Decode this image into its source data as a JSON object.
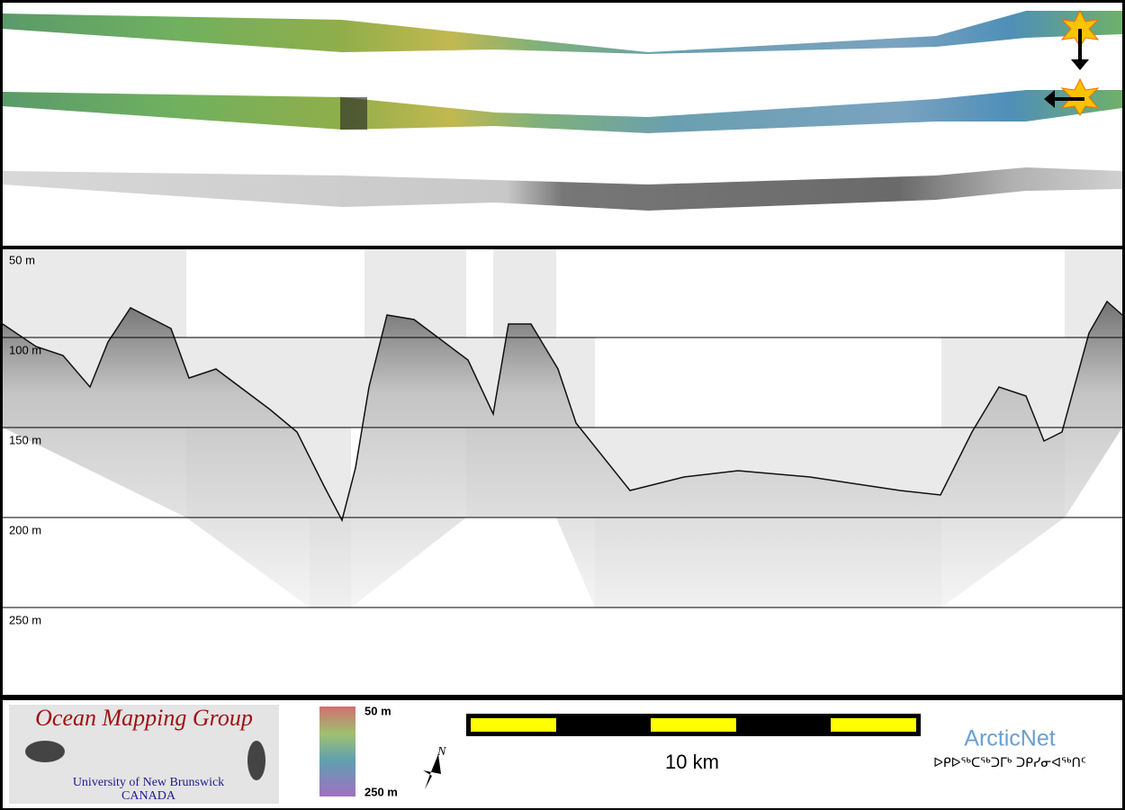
{
  "profile": {
    "depth_labels": [
      "50 m",
      "100 m",
      "150 m",
      "200 m",
      "250 m"
    ]
  },
  "footer": {
    "logo": {
      "title": "Ocean Mapping Group",
      "university": "University of New Brunswick",
      "country": "CANADA"
    },
    "colorbar": {
      "top_label": "50 m",
      "bottom_label": "250 m"
    },
    "north_arrow": "N",
    "scale_bar": "10 km",
    "partner": {
      "name": "ArcticNet",
      "syllabics": "ᐅᑭᐅᖅᑕᖅᑐᒥᒃ ᑐᑭᓯᓂᐊᖅᑎᑦ"
    }
  }
}
